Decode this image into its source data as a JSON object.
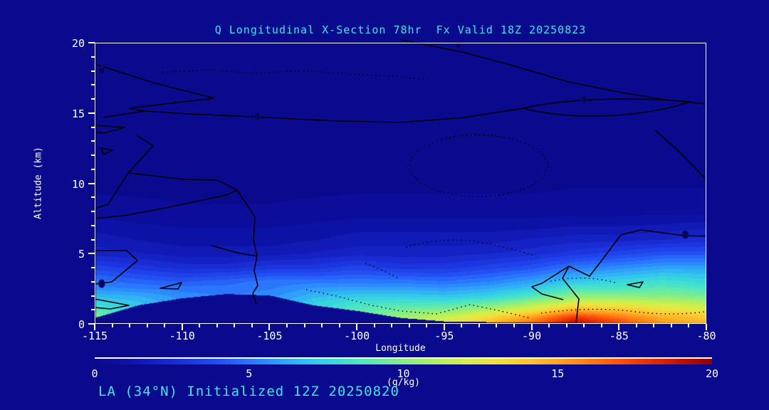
{
  "header": {
    "title": "Q Longitudinal X-Section 78hr  Fx Valid 18Z 20250823"
  },
  "footer": {
    "caption": "LA (34°N) Initialized 12Z 20250820"
  },
  "colors": {
    "background": "#0a0a8f",
    "title_text": "#3fe6e6",
    "axis_text": "#ffffff",
    "frame": "#ffffff",
    "contour_line": "#000000"
  },
  "axes": {
    "x": {
      "label": "Longitude",
      "min": -115,
      "max": -80,
      "major_ticks": [
        -115,
        -110,
        -105,
        -100,
        -95,
        -90,
        -85,
        -80
      ],
      "minor_step": 1
    },
    "y": {
      "label": "Altitude (km)",
      "min": 0,
      "max": 20,
      "major_ticks": [
        0,
        5,
        10,
        15,
        20
      ],
      "minor_step": 1
    }
  },
  "colorbar": {
    "min": 0,
    "max": 20,
    "ticks": [
      0,
      5,
      10,
      15,
      20
    ],
    "units": "(g/kg)"
  },
  "chart_data": {
    "type": "heatmap",
    "title": "Q Longitudinal X-Section 78hr  Fx Valid 18Z 20250823",
    "subtitle": "LA (34°N) Initialized 12Z 20250820",
    "xlabel": "Longitude",
    "ylabel": "Altitude (km)",
    "xlim": [
      -115,
      -80
    ],
    "ylim": [
      0,
      20
    ],
    "units": "g/kg",
    "grid": false,
    "x_longitudes": [
      -115,
      -112.5,
      -110,
      -107.5,
      -105,
      -102.5,
      -100,
      -97.5,
      -95,
      -92.5,
      -90,
      -87.5,
      -85,
      -82.5,
      -80
    ],
    "y_altitudes_km": [
      0,
      0.5,
      1,
      1.5,
      2,
      2.5,
      3,
      4,
      5,
      6,
      7,
      8,
      10,
      12,
      16,
      20
    ],
    "values_q_g_per_kg": [
      [
        11.0,
        8.0,
        6.5,
        6.0,
        6.5,
        8.0,
        9.5,
        11.0,
        12.5,
        14.5,
        16.5,
        19.5,
        17.5,
        15.5,
        14.5
      ],
      [
        10.0,
        7.5,
        6.2,
        5.8,
        6.2,
        7.8,
        9.0,
        10.5,
        11.5,
        13.0,
        15.0,
        17.5,
        16.0,
        14.5,
        14.0
      ],
      [
        8.5,
        7.2,
        6.0,
        5.6,
        6.0,
        7.5,
        8.8,
        9.5,
        9.8,
        11.0,
        12.5,
        14.5,
        14.0,
        13.0,
        12.5
      ],
      [
        7.5,
        6.8,
        5.8,
        5.4,
        5.8,
        7.2,
        8.0,
        8.2,
        8.2,
        9.0,
        10.5,
        12.0,
        12.0,
        11.5,
        11.0
      ],
      [
        6.5,
        6.2,
        5.5,
        5.2,
        5.5,
        6.5,
        7.0,
        7.0,
        6.8,
        7.2,
        8.5,
        10.0,
        10.0,
        10.0,
        9.5
      ],
      [
        5.5,
        5.2,
        5.0,
        5.0,
        5.2,
        5.8,
        6.0,
        6.0,
        5.8,
        6.2,
        7.0,
        8.5,
        8.5,
        9.0,
        8.5
      ],
      [
        5.0,
        4.5,
        4.2,
        4.5,
        5.0,
        5.0,
        5.0,
        5.0,
        4.8,
        5.2,
        6.0,
        7.0,
        7.5,
        8.0,
        7.5
      ],
      [
        3.5,
        3.0,
        2.5,
        2.5,
        3.0,
        3.0,
        3.5,
        3.0,
        3.0,
        3.5,
        4.0,
        5.0,
        5.5,
        6.0,
        6.0
      ],
      [
        2.0,
        1.8,
        1.5,
        1.5,
        1.5,
        1.8,
        2.0,
        2.0,
        2.0,
        2.2,
        2.5,
        3.0,
        3.5,
        4.0,
        4.0
      ],
      [
        1.5,
        1.2,
        1.0,
        1.0,
        1.0,
        1.2,
        1.5,
        1.5,
        1.5,
        1.5,
        1.8,
        2.0,
        2.0,
        2.2,
        2.5
      ],
      [
        1.0,
        0.8,
        0.7,
        0.7,
        0.7,
        0.8,
        1.0,
        1.0,
        1.0,
        1.0,
        1.0,
        1.2,
        1.2,
        1.3,
        1.5
      ],
      [
        0.5,
        0.4,
        0.3,
        0.3,
        0.3,
        0.4,
        0.5,
        0.5,
        0.5,
        0.5,
        0.5,
        0.5,
        0.5,
        0.5,
        0.5
      ],
      [
        0.1,
        0.1,
        0.1,
        0.1,
        0.1,
        0.1,
        0.1,
        0.1,
        0.1,
        0.1,
        0.1,
        0.2,
        0.2,
        0.2,
        0.2
      ],
      [
        0,
        0,
        0,
        0,
        0,
        0,
        0,
        0,
        0,
        0,
        0,
        0,
        0,
        0,
        0
      ],
      [
        0,
        0,
        0,
        0,
        0,
        0,
        0,
        0,
        0,
        0,
        0,
        0,
        0,
        0,
        0
      ],
      [
        0,
        0,
        0,
        0,
        0,
        0,
        0,
        0,
        0,
        0,
        0,
        0,
        0,
        0,
        0
      ]
    ],
    "terrain_height_km": [
      0.4,
      1.3,
      1.8,
      2.1,
      2.0,
      1.3,
      0.9,
      0.4,
      0.15,
      0.1,
      0.08,
      0.05,
      0.05,
      0.05,
      0.05
    ],
    "colormap_stops": [
      [
        0,
        "#0a0a8f"
      ],
      [
        1,
        "#0d12a6"
      ],
      [
        2,
        "#1422c4"
      ],
      [
        3,
        "#1b35e0"
      ],
      [
        4,
        "#2250f2"
      ],
      [
        5,
        "#2a76ff"
      ],
      [
        6,
        "#2fa1fa"
      ],
      [
        7,
        "#33c8ea"
      ],
      [
        8,
        "#3fdfd2"
      ],
      [
        9,
        "#5fe9ae"
      ],
      [
        10,
        "#85ee86"
      ],
      [
        11,
        "#aef061"
      ],
      [
        12,
        "#d4ee4b"
      ],
      [
        13,
        "#f0e13c"
      ],
      [
        14,
        "#fec72e"
      ],
      [
        15,
        "#ffa51f"
      ],
      [
        16,
        "#ff7d13"
      ],
      [
        17,
        "#fb5109"
      ],
      [
        18,
        "#e62d04"
      ],
      [
        19,
        "#bd1202"
      ],
      [
        20,
        "#8b0000"
      ]
    ],
    "contour_overlay": {
      "style": "black solid and dotted zero-contour lines",
      "labels": [
        {
          "text": "0",
          "lon": -114.6,
          "alt_km": 18.0
        },
        {
          "text": "0",
          "lon": -105.7,
          "alt_km": 14.7
        },
        {
          "text": "0",
          "lon": -94.2,
          "alt_km": 20.0
        },
        {
          "text": "0",
          "lon": -87.0,
          "alt_km": 15.9
        },
        {
          "text": "0",
          "lon": -81.2,
          "alt_km": 6.3
        },
        {
          "text": "0",
          "lon": -114.6,
          "alt_km": 2.8
        }
      ]
    }
  }
}
